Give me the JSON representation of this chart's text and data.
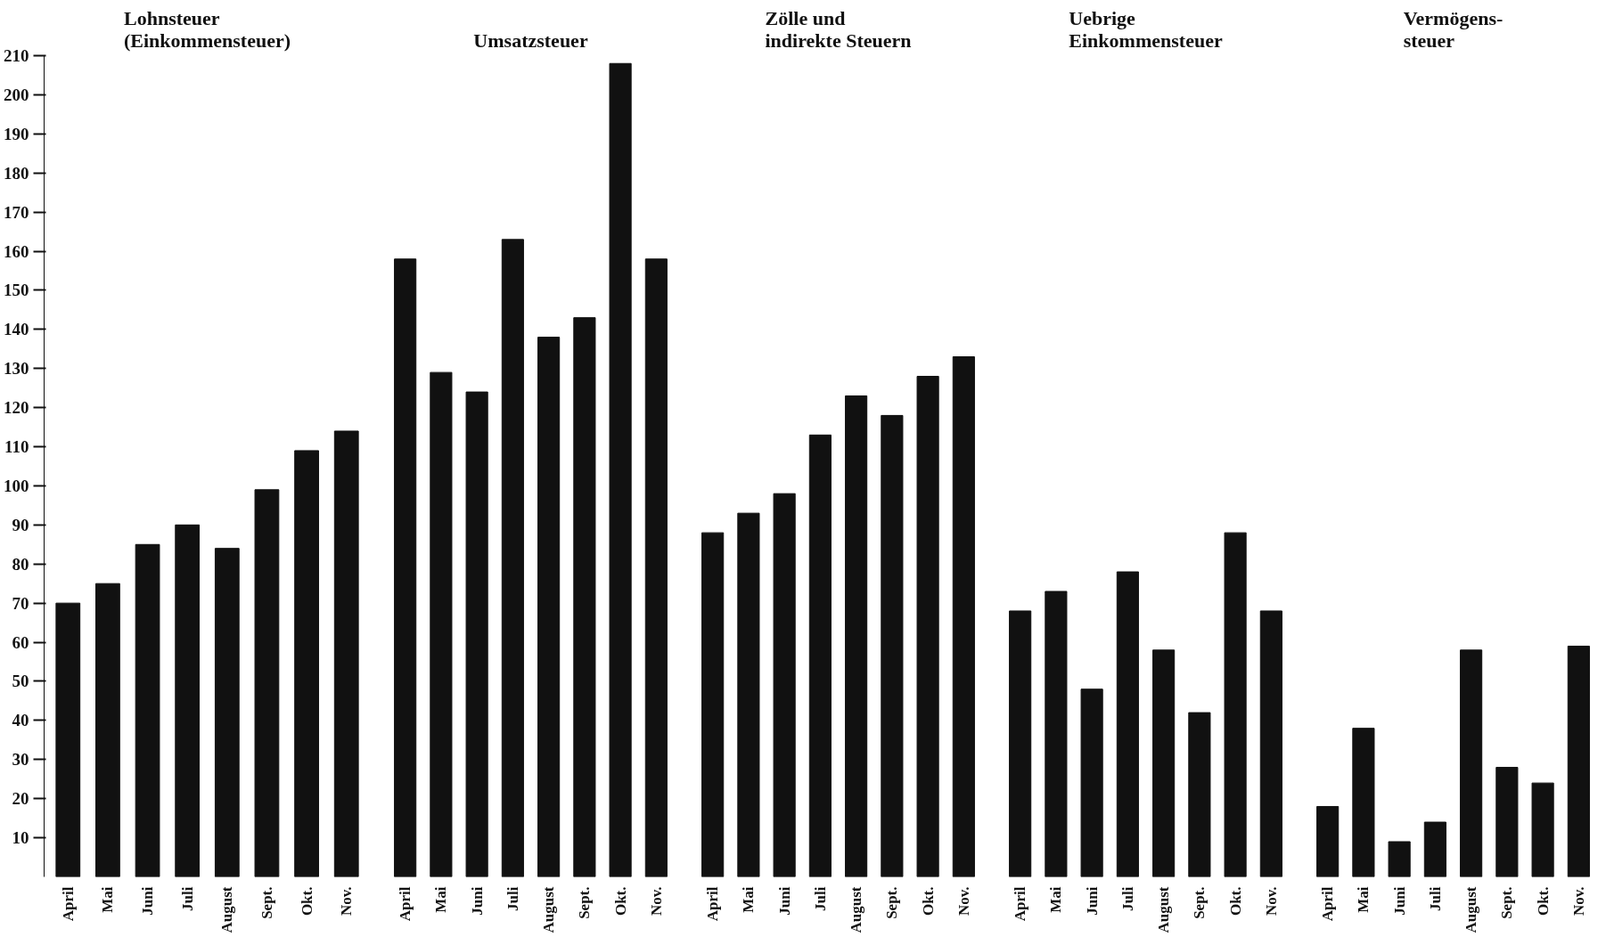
{
  "chart_data": [
    {
      "type": "bar",
      "title": "Lohnsteuer\n(Einkommensteuer)",
      "categories": [
        "April",
        "Mai",
        "Juni",
        "Juli",
        "August",
        "Sept.",
        "Okt.",
        "Nov."
      ],
      "values": [
        70,
        75,
        85,
        90,
        84,
        99,
        109,
        114
      ],
      "color": "#111111",
      "ylim": [
        0,
        210
      ],
      "yticks": [
        10,
        20,
        30,
        40,
        50,
        60,
        70,
        80,
        90,
        100,
        110,
        120,
        130,
        140,
        150,
        160,
        170,
        180,
        190,
        200,
        210
      ]
    },
    {
      "type": "bar",
      "title": "Umsatzsteuer",
      "categories": [
        "April",
        "Mai",
        "Juni",
        "Juli",
        "August",
        "Sept.",
        "Okt.",
        "Nov."
      ],
      "values": [
        158,
        129,
        124,
        163,
        138,
        143,
        208,
        158
      ],
      "color": "#111111",
      "ylim": [
        0,
        210
      ],
      "tick_labels": "x"
    },
    {
      "type": "bar",
      "title": "Zölle und\nindirekte Steuern",
      "categories": [
        "April",
        "Mai",
        "Juni",
        "Juli",
        "August",
        "Sept.",
        "Okt.",
        "Nov."
      ],
      "values": [
        88,
        93,
        98,
        113,
        123,
        118,
        128,
        133
      ],
      "color": "#111111",
      "ylim": [
        0,
        210
      ],
      "tick_labels": "x"
    },
    {
      "type": "bar",
      "title": "Uebrige\nEinkommensteuer",
      "categories": [
        "April",
        "Mai",
        "Juni",
        "Juli",
        "August",
        "Sept.",
        "Okt.",
        "Nov."
      ],
      "values": [
        68,
        73,
        48,
        78,
        58,
        42,
        88,
        68
      ],
      "color": "#111111",
      "ylim": [
        0,
        210
      ],
      "tick_labels": "x"
    },
    {
      "type": "bar",
      "title": "Vermögens-\nsteuer",
      "categories": [
        "April",
        "Mai",
        "Juni",
        "Juli",
        "August",
        "Sept.",
        "Okt.",
        "Nov."
      ],
      "values": [
        18,
        38,
        9,
        14,
        58,
        28,
        24,
        59
      ],
      "color": "#111111",
      "ylim": [
        0,
        210
      ],
      "tick_labels": "x"
    }
  ]
}
